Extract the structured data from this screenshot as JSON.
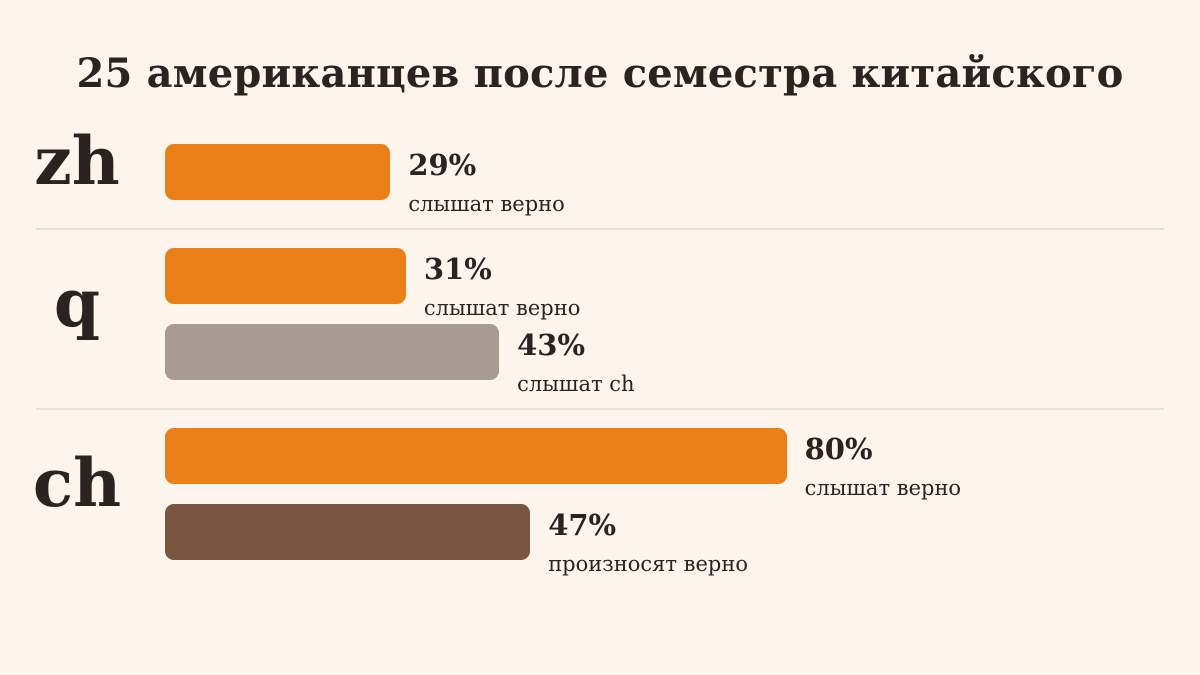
{
  "chart_data": {
    "type": "bar",
    "orientation": "horizontal",
    "title": "25 американцев после семестра китайского",
    "value_unit": "%",
    "xlim": [
      0,
      100
    ],
    "grid": false,
    "groups": [
      {
        "label": "zh",
        "bars": [
          {
            "value": 29,
            "value_text": "29%",
            "description": "слышат верно",
            "color": "#ec8018"
          }
        ]
      },
      {
        "label": "q",
        "bars": [
          {
            "value": 31,
            "value_text": "31%",
            "description": "слышат верно",
            "color": "#ec8018"
          },
          {
            "value": 43,
            "value_text": "43%",
            "description": "слышат ch",
            "color": "#a89b90"
          }
        ]
      },
      {
        "label": "ch",
        "bars": [
          {
            "value": 80,
            "value_text": "80%",
            "description": "слышат верно",
            "color": "#ec8018"
          },
          {
            "value": 47,
            "value_text": "47%",
            "description": "произносят верно",
            "color": "#7a5540"
          }
        ]
      }
    ]
  }
}
